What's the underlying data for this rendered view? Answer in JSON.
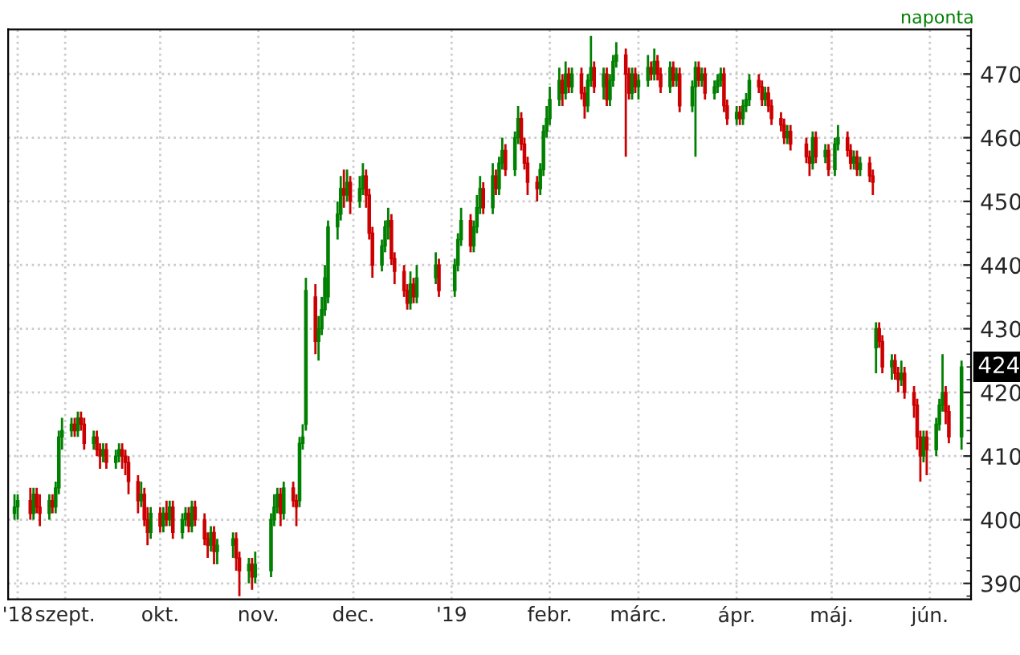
{
  "chart_data": {
    "type": "candlestick",
    "subtitle": "naponta",
    "x": [
      "2018-08-16",
      "2018-08-17",
      "2018-08-21",
      "2018-08-22",
      "2018-08-23",
      "2018-08-24",
      "2018-08-27",
      "2018-08-28",
      "2018-08-29",
      "2018-08-30",
      "2018-08-31",
      "2018-09-03",
      "2018-09-04",
      "2018-09-05",
      "2018-09-06",
      "2018-09-07",
      "2018-09-10",
      "2018-09-11",
      "2018-09-12",
      "2018-09-13",
      "2018-09-14",
      "2018-09-17",
      "2018-09-18",
      "2018-09-19",
      "2018-09-20",
      "2018-09-21",
      "2018-09-24",
      "2018-09-25",
      "2018-09-26",
      "2018-09-27",
      "2018-09-28",
      "2018-10-01",
      "2018-10-02",
      "2018-10-03",
      "2018-10-04",
      "2018-10-05",
      "2018-10-08",
      "2018-10-09",
      "2018-10-10",
      "2018-10-11",
      "2018-10-12",
      "2018-10-15",
      "2018-10-16",
      "2018-10-17",
      "2018-10-18",
      "2018-10-19",
      "2018-10-24",
      "2018-10-25",
      "2018-10-26",
      "2018-10-29",
      "2018-10-30",
      "2018-10-31",
      "2018-11-05",
      "2018-11-06",
      "2018-11-07",
      "2018-11-08",
      "2018-11-09",
      "2018-11-12",
      "2018-11-13",
      "2018-11-14",
      "2018-11-15",
      "2018-11-16",
      "2018-11-19",
      "2018-11-20",
      "2018-11-21",
      "2018-11-22",
      "2018-11-23",
      "2018-11-26",
      "2018-11-27",
      "2018-11-28",
      "2018-11-29",
      "2018-11-30",
      "2018-12-03",
      "2018-12-04",
      "2018-12-05",
      "2018-12-06",
      "2018-12-07",
      "2018-12-10",
      "2018-12-11",
      "2018-12-12",
      "2018-12-13",
      "2018-12-14",
      "2018-12-17",
      "2018-12-18",
      "2018-12-19",
      "2018-12-20",
      "2018-12-21",
      "2018-12-27",
      "2018-12-28",
      "2019-01-02",
      "2019-01-03",
      "2019-01-04",
      "2019-01-07",
      "2019-01-08",
      "2019-01-09",
      "2019-01-10",
      "2019-01-11",
      "2019-01-14",
      "2019-01-15",
      "2019-01-16",
      "2019-01-17",
      "2019-01-18",
      "2019-01-21",
      "2019-01-22",
      "2019-01-23",
      "2019-01-24",
      "2019-01-25",
      "2019-01-28",
      "2019-01-29",
      "2019-01-30",
      "2019-01-31",
      "2019-02-01",
      "2019-02-04",
      "2019-02-05",
      "2019-02-06",
      "2019-02-07",
      "2019-02-08",
      "2019-02-11",
      "2019-02-12",
      "2019-02-13",
      "2019-02-14",
      "2019-02-15",
      "2019-02-18",
      "2019-02-19",
      "2019-02-20",
      "2019-02-21",
      "2019-02-22",
      "2019-02-25",
      "2019-02-26",
      "2019-02-27",
      "2019-02-28",
      "2019-03-01",
      "2019-03-04",
      "2019-03-05",
      "2019-03-06",
      "2019-03-07",
      "2019-03-08",
      "2019-03-11",
      "2019-03-12",
      "2019-03-13",
      "2019-03-14",
      "2019-03-18",
      "2019-03-19",
      "2019-03-20",
      "2019-03-21",
      "2019-03-22",
      "2019-03-25",
      "2019-03-26",
      "2019-03-27",
      "2019-03-28",
      "2019-03-29",
      "2019-04-01",
      "2019-04-02",
      "2019-04-03",
      "2019-04-04",
      "2019-04-05",
      "2019-04-08",
      "2019-04-09",
      "2019-04-10",
      "2019-04-11",
      "2019-04-12",
      "2019-04-15",
      "2019-04-16",
      "2019-04-17",
      "2019-04-18",
      "2019-04-23",
      "2019-04-24",
      "2019-04-25",
      "2019-04-26",
      "2019-04-29",
      "2019-04-30",
      "2019-05-02",
      "2019-05-03",
      "2019-05-06",
      "2019-05-07",
      "2019-05-08",
      "2019-05-09",
      "2019-05-10",
      "2019-05-13",
      "2019-05-14",
      "2019-05-15",
      "2019-05-16",
      "2019-05-17",
      "2019-05-20",
      "2019-05-21",
      "2019-05-22",
      "2019-05-23",
      "2019-05-24",
      "2019-05-27",
      "2019-05-28",
      "2019-05-29",
      "2019-05-30",
      "2019-05-31",
      "2019-06-03",
      "2019-06-04",
      "2019-06-05",
      "2019-06-06",
      "2019-06-07",
      "2019-06-11"
    ],
    "ohlc": [
      [
        401,
        404,
        400,
        402
      ],
      [
        402,
        404,
        400,
        403
      ],
      [
        403,
        405,
        400,
        401
      ],
      [
        401,
        405,
        400,
        404
      ],
      [
        404,
        405,
        401,
        402
      ],
      [
        402,
        404,
        399,
        401
      ],
      [
        401,
        404,
        400,
        403
      ],
      [
        403,
        404,
        401,
        402
      ],
      [
        402,
        406,
        401,
        405
      ],
      [
        405,
        414,
        404,
        413
      ],
      [
        413,
        416,
        411,
        414
      ],
      [
        414,
        416,
        413,
        415
      ],
      [
        415,
        416,
        413,
        414
      ],
      [
        414,
        417,
        413,
        416
      ],
      [
        416,
        417,
        414,
        415
      ],
      [
        415,
        416,
        411,
        412
      ],
      [
        412,
        414,
        411,
        413
      ],
      [
        413,
        414,
        410,
        411
      ],
      [
        411,
        412,
        408,
        410
      ],
      [
        410,
        412,
        409,
        411
      ],
      [
        411,
        412,
        408,
        409
      ],
      [
        409,
        411,
        408,
        410
      ],
      [
        410,
        412,
        409,
        411
      ],
      [
        411,
        412,
        408,
        410
      ],
      [
        410,
        411,
        407,
        409
      ],
      [
        409,
        410,
        404,
        406
      ],
      [
        406,
        407,
        401,
        403
      ],
      [
        403,
        406,
        402,
        404
      ],
      [
        404,
        405,
        399,
        400
      ],
      [
        400,
        402,
        396,
        398
      ],
      [
        398,
        402,
        397,
        401
      ],
      [
        401,
        402,
        398,
        399
      ],
      [
        399,
        402,
        398,
        401
      ],
      [
        401,
        403,
        399,
        400
      ],
      [
        400,
        403,
        399,
        402
      ],
      [
        402,
        403,
        397,
        398
      ],
      [
        398,
        401,
        397,
        400
      ],
      [
        400,
        402,
        399,
        401
      ],
      [
        401,
        402,
        398,
        399
      ],
      [
        399,
        403,
        398,
        402
      ],
      [
        402,
        403,
        399,
        400
      ],
      [
        400,
        401,
        396,
        397
      ],
      [
        397,
        398,
        394,
        396
      ],
      [
        396,
        399,
        395,
        398
      ],
      [
        398,
        399,
        393,
        395
      ],
      [
        395,
        397,
        393,
        396
      ],
      [
        396,
        398,
        394,
        397
      ],
      [
        397,
        398,
        392,
        394
      ],
      [
        394,
        395,
        388,
        392
      ],
      [
        392,
        394,
        390,
        393
      ],
      [
        393,
        394,
        389,
        391
      ],
      [
        391,
        395,
        390,
        393
      ],
      [
        392,
        401,
        391,
        400
      ],
      [
        400,
        404,
        399,
        402
      ],
      [
        402,
        405,
        401,
        404
      ],
      [
        404,
        405,
        399,
        401
      ],
      [
        401,
        406,
        400,
        405
      ],
      [
        405,
        406,
        402,
        403
      ],
      [
        403,
        404,
        399,
        402
      ],
      [
        403,
        413,
        402,
        412
      ],
      [
        412,
        415,
        411,
        413
      ],
      [
        415,
        438,
        414,
        436
      ],
      [
        435,
        437,
        426,
        428
      ],
      [
        428,
        432,
        425,
        430
      ],
      [
        430,
        435,
        429,
        433
      ],
      [
        433,
        440,
        432,
        438
      ],
      [
        435,
        447,
        434,
        446
      ],
      [
        446,
        450,
        444,
        448
      ],
      [
        448,
        454,
        447,
        452
      ],
      [
        452,
        455,
        449,
        451
      ],
      [
        451,
        455,
        450,
        453
      ],
      [
        453,
        454,
        448,
        450
      ],
      [
        450,
        454,
        449,
        452
      ],
      [
        452,
        456,
        451,
        454
      ],
      [
        454,
        455,
        449,
        451
      ],
      [
        451,
        452,
        444,
        445
      ],
      [
        445,
        446,
        438,
        440
      ],
      [
        440,
        444,
        439,
        443
      ],
      [
        443,
        447,
        442,
        446
      ],
      [
        446,
        449,
        444,
        447
      ],
      [
        447,
        448,
        440,
        441
      ],
      [
        441,
        442,
        437,
        439
      ],
      [
        439,
        440,
        435,
        436
      ],
      [
        436,
        437,
        433,
        434
      ],
      [
        434,
        439,
        433,
        437
      ],
      [
        437,
        438,
        434,
        435
      ],
      [
        435,
        440,
        434,
        438
      ],
      [
        438,
        442,
        437,
        440
      ],
      [
        440,
        441,
        435,
        436
      ],
      [
        436,
        441,
        435,
        440
      ],
      [
        440,
        445,
        439,
        444
      ],
      [
        444,
        449,
        443,
        447
      ],
      [
        447,
        448,
        442,
        443
      ],
      [
        443,
        447,
        442,
        446
      ],
      [
        446,
        451,
        445,
        449
      ],
      [
        449,
        454,
        448,
        452
      ],
      [
        452,
        453,
        448,
        449
      ],
      [
        449,
        456,
        448,
        454
      ],
      [
        454,
        455,
        451,
        452
      ],
      [
        452,
        457,
        451,
        456
      ],
      [
        456,
        460,
        455,
        458
      ],
      [
        458,
        459,
        454,
        455
      ],
      [
        455,
        461,
        454,
        460
      ],
      [
        460,
        465,
        459,
        463
      ],
      [
        463,
        464,
        458,
        459
      ],
      [
        459,
        460,
        455,
        456
      ],
      [
        456,
        457,
        451,
        453
      ],
      [
        453,
        454,
        450,
        452
      ],
      [
        452,
        456,
        451,
        455
      ],
      [
        455,
        462,
        454,
        461
      ],
      [
        461,
        465,
        460,
        463
      ],
      [
        463,
        468,
        462,
        466
      ],
      [
        466,
        471,
        465,
        469
      ],
      [
        469,
        470,
        465,
        467
      ],
      [
        467,
        472,
        466,
        470
      ],
      [
        470,
        471,
        467,
        468
      ],
      [
        468,
        471,
        467,
        470
      ],
      [
        470,
        471,
        466,
        467
      ],
      [
        467,
        468,
        463,
        465
      ],
      [
        465,
        470,
        464,
        469
      ],
      [
        469,
        476,
        468,
        471
      ],
      [
        471,
        472,
        467,
        468
      ],
      [
        468,
        471,
        466,
        470
      ],
      [
        470,
        471,
        465,
        466
      ],
      [
        466,
        470,
        465,
        469
      ],
      [
        469,
        473,
        468,
        472
      ],
      [
        472,
        475,
        471,
        473
      ],
      [
        473,
        474,
        457,
        470
      ],
      [
        470,
        471,
        466,
        467
      ],
      [
        467,
        471,
        466,
        470
      ],
      [
        470,
        471,
        467,
        468
      ],
      [
        468,
        470,
        466,
        469
      ],
      [
        469,
        473,
        468,
        471
      ],
      [
        471,
        472,
        469,
        470
      ],
      [
        470,
        474,
        469,
        472
      ],
      [
        472,
        473,
        469,
        470
      ],
      [
        470,
        471,
        467,
        468
      ],
      [
        468,
        472,
        467,
        471
      ],
      [
        471,
        472,
        468,
        469
      ],
      [
        469,
        471,
        468,
        470
      ],
      [
        470,
        471,
        464,
        465
      ],
      [
        465,
        469,
        464,
        468
      ],
      [
        468,
        472,
        457,
        471
      ],
      [
        471,
        472,
        468,
        469
      ],
      [
        469,
        471,
        468,
        470
      ],
      [
        470,
        471,
        466,
        467
      ],
      [
        467,
        469,
        466,
        468
      ],
      [
        468,
        470,
        467,
        469
      ],
      [
        469,
        471,
        468,
        470
      ],
      [
        470,
        471,
        464,
        465
      ],
      [
        465,
        466,
        462,
        463
      ],
      [
        463,
        465,
        462,
        464
      ],
      [
        464,
        465,
        462,
        463
      ],
      [
        463,
        466,
        462,
        465
      ],
      [
        465,
        467,
        464,
        466
      ],
      [
        466,
        470,
        465,
        469
      ],
      [
        469,
        470,
        467,
        468
      ],
      [
        468,
        469,
        465,
        466
      ],
      [
        466,
        468,
        465,
        467
      ],
      [
        467,
        468,
        464,
        465
      ],
      [
        465,
        466,
        462,
        463
      ],
      [
        463,
        464,
        461,
        462
      ],
      [
        462,
        463,
        459,
        460
      ],
      [
        460,
        462,
        459,
        461
      ],
      [
        461,
        462,
        458,
        459
      ],
      [
        459,
        460,
        456,
        457
      ],
      [
        457,
        458,
        454,
        456
      ],
      [
        456,
        461,
        455,
        460
      ],
      [
        460,
        461,
        456,
        457
      ],
      [
        457,
        459,
        456,
        458
      ],
      [
        458,
        459,
        454,
        455
      ],
      [
        455,
        460,
        454,
        459
      ],
      [
        459,
        462,
        458,
        460
      ],
      [
        460,
        461,
        457,
        458
      ],
      [
        458,
        459,
        455,
        456
      ],
      [
        456,
        458,
        455,
        457
      ],
      [
        457,
        458,
        454,
        455
      ],
      [
        455,
        457,
        454,
        456
      ],
      [
        456,
        457,
        453,
        454
      ],
      [
        454,
        455,
        451,
        453
      ],
      [
        427,
        431,
        423,
        430
      ],
      [
        430,
        431,
        427,
        428
      ],
      [
        428,
        429,
        423,
        424
      ],
      [
        424,
        426,
        422,
        425
      ],
      [
        425,
        426,
        422,
        423
      ],
      [
        423,
        424,
        420,
        422
      ],
      [
        422,
        425,
        421,
        423
      ],
      [
        423,
        424,
        419,
        420
      ],
      [
        420,
        421,
        416,
        418
      ],
      [
        418,
        419,
        411,
        413
      ],
      [
        413,
        414,
        406,
        410
      ],
      [
        410,
        414,
        409,
        413
      ],
      [
        413,
        414,
        407,
        411
      ],
      [
        411,
        416,
        410,
        415
      ],
      [
        415,
        419,
        414,
        418
      ],
      [
        418,
        426,
        417,
        420
      ],
      [
        420,
        421,
        415,
        417
      ],
      [
        417,
        418,
        412,
        413
      ],
      [
        413,
        425,
        411,
        424
      ]
    ],
    "xlim": [
      "2018-08-14",
      "2019-06-14"
    ],
    "xticks": [
      {
        "value": "2018-08-17",
        "label": "'18"
      },
      {
        "value": "2018-09-01",
        "label": "szept."
      },
      {
        "value": "2018-10-01",
        "label": "okt."
      },
      {
        "value": "2018-11-01",
        "label": "nov."
      },
      {
        "value": "2018-12-01",
        "label": "dec."
      },
      {
        "value": "2019-01-01",
        "label": "'19"
      },
      {
        "value": "2019-02-01",
        "label": "febr."
      },
      {
        "value": "2019-03-01",
        "label": "márc."
      },
      {
        "value": "2019-04-01",
        "label": "ápr."
      },
      {
        "value": "2019-05-01",
        "label": "máj."
      },
      {
        "value": "2019-06-01",
        "label": "jún."
      }
    ],
    "ylim": [
      387.5,
      477
    ],
    "yticks": [
      390,
      400,
      410,
      420,
      430,
      440,
      450,
      460,
      470
    ],
    "annotations": [
      {
        "text": "424",
        "y": 424
      }
    ],
    "grid": true,
    "legend": false
  }
}
